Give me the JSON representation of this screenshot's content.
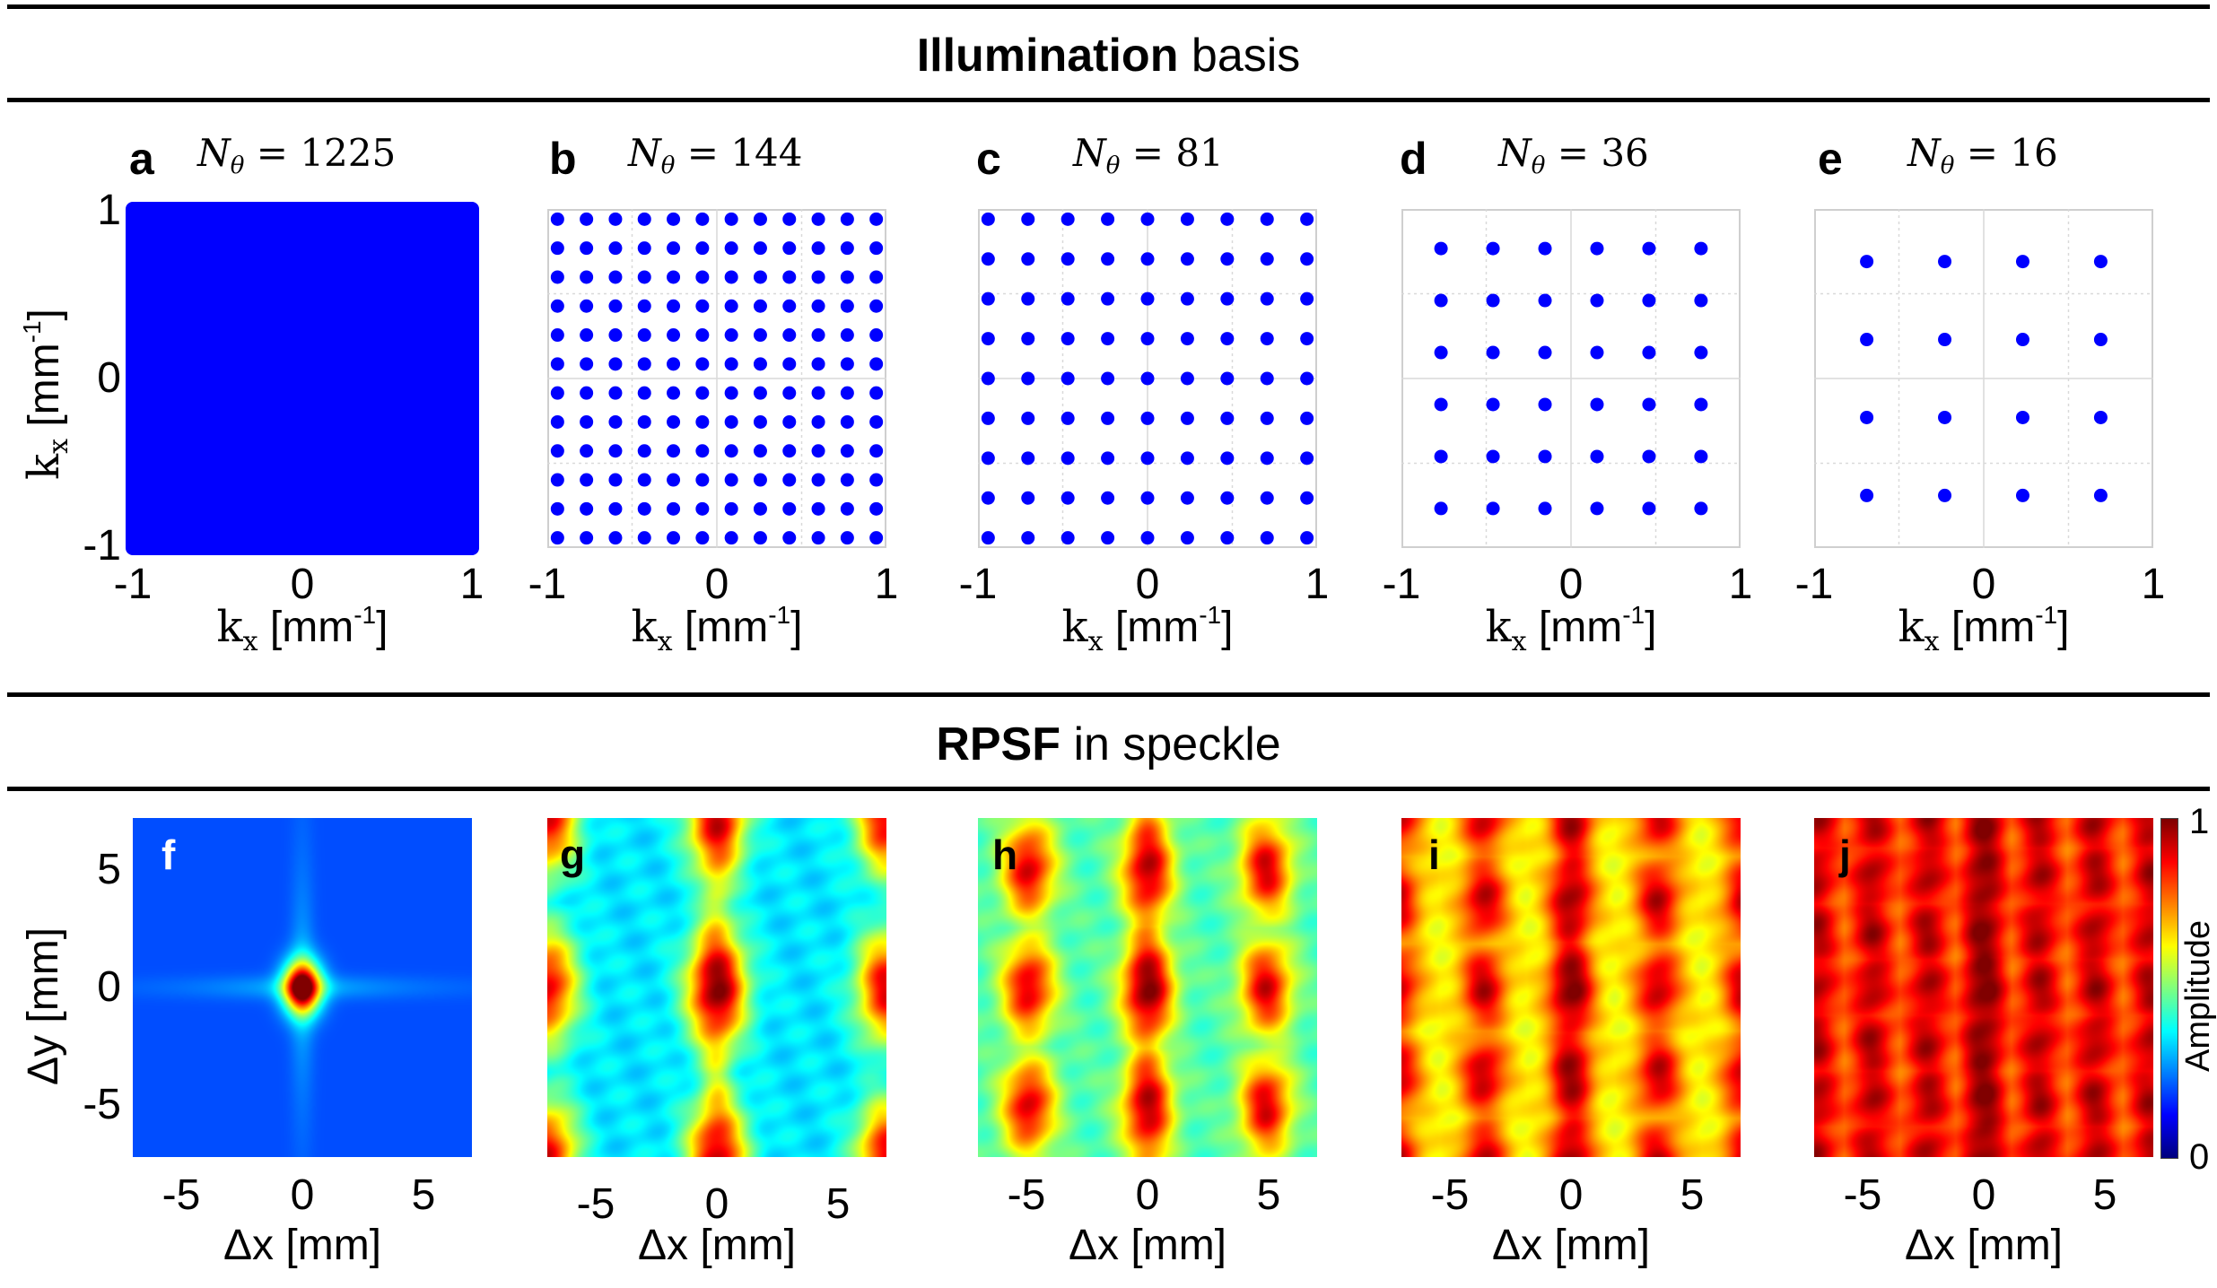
{
  "top_section": {
    "title_bold": "Illumination",
    "title_rest": " basis"
  },
  "bottom_section": {
    "title_bold": "RPSF",
    "title_rest": " in speckle"
  },
  "colors": {
    "dot": "#0000ff",
    "grid": "#d9d9d9"
  },
  "chart_data": [
    {
      "panel": "a",
      "type": "scatter",
      "n_label": "1225",
      "grid_n": 35,
      "x_range": [
        -1,
        1
      ],
      "y_range": [
        -1,
        1
      ],
      "xlabel": "k",
      "xlabel_sub": "x",
      "xlabel_unit": " [mm",
      "xlabel_sup": "-1",
      "xlabel_close": "]",
      "ylabel": "k",
      "ylabel_sub": "x",
      "ylabel_unit": " [mm",
      "ylabel_sup": "-1",
      "ylabel_close": "]",
      "xticks": [
        "-1",
        "0",
        "1"
      ],
      "yticks": [
        "1",
        "0",
        "-1"
      ]
    },
    {
      "panel": "b",
      "type": "scatter",
      "n_label": "144",
      "grid_n": 12,
      "x_range": [
        -1,
        1
      ],
      "y_range": [
        -1,
        1
      ],
      "xlabel": "k",
      "xlabel_sub": "x",
      "xlabel_unit": " [mm",
      "xlabel_sup": "-1",
      "xlabel_close": "]",
      "xticks": [
        "-1",
        "0",
        "1"
      ]
    },
    {
      "panel": "c",
      "type": "scatter",
      "n_label": "81",
      "grid_n": 9,
      "x_range": [
        -1,
        1
      ],
      "y_range": [
        -1,
        1
      ],
      "xlabel": "k",
      "xlabel_sub": "x",
      "xlabel_unit": " [mm",
      "xlabel_sup": "-1",
      "xlabel_close": "]",
      "xticks": [
        "-1",
        "0",
        "1"
      ]
    },
    {
      "panel": "d",
      "type": "scatter",
      "n_label": "36",
      "grid_n": 6,
      "x_range": [
        -1,
        1
      ],
      "y_range": [
        -1,
        1
      ],
      "xlabel": "k",
      "xlabel_sub": "x",
      "xlabel_unit": " [mm",
      "xlabel_sup": "-1",
      "xlabel_close": "]",
      "xticks": [
        "-1",
        "0",
        "1"
      ]
    },
    {
      "panel": "e",
      "type": "scatter",
      "n_label": "16",
      "grid_n": 4,
      "x_range": [
        -1,
        1
      ],
      "y_range": [
        -1,
        1
      ],
      "xlabel": "k",
      "xlabel_sub": "x",
      "xlabel_unit": " [mm",
      "xlabel_sup": "-1",
      "xlabel_close": "]",
      "xticks": [
        "-1",
        "0",
        "1"
      ]
    },
    {
      "panel": "f",
      "type": "heatmap",
      "period_mm": null,
      "background": 0.2,
      "x_range": [
        -7,
        7
      ],
      "y_range": [
        -7,
        7
      ],
      "xlabel": "Δx [mm]",
      "ylabel": "Δy [mm]",
      "xticks": [
        "-5",
        "0",
        "5"
      ],
      "yticks": [
        "5",
        "0",
        "-5"
      ]
    },
    {
      "panel": "g",
      "type": "heatmap",
      "period_mm": 7.0,
      "background": 0.35,
      "x_range": [
        -7,
        7
      ],
      "y_range": [
        -7,
        7
      ],
      "xlabel": "Δx [mm]",
      "xticks": [
        "-5",
        "0",
        "5"
      ]
    },
    {
      "panel": "h",
      "type": "heatmap",
      "period_mm": 4.9,
      "background": 0.45,
      "x_range": [
        -7,
        7
      ],
      "y_range": [
        -7,
        7
      ],
      "xlabel": "Δx [mm]",
      "xticks": [
        "-5",
        "0",
        "5"
      ]
    },
    {
      "panel": "i",
      "type": "heatmap",
      "period_mm": 3.6,
      "background": 0.62,
      "x_range": [
        -7,
        7
      ],
      "y_range": [
        -7,
        7
      ],
      "xlabel": "Δx [mm]",
      "xticks": [
        "-5",
        "0",
        "5"
      ]
    },
    {
      "panel": "j",
      "type": "heatmap",
      "period_mm": 2.3,
      "background": 0.75,
      "x_range": [
        -7,
        7
      ],
      "y_range": [
        -7,
        7
      ],
      "xlabel": "Δx [mm]",
      "xticks": [
        "-5",
        "0",
        "5"
      ]
    }
  ],
  "colorbar": {
    "label": "Amplitude",
    "min": "0",
    "max": "1",
    "range": [
      0,
      1
    ],
    "colormap": "jet"
  },
  "n_symbol": "N",
  "n_sub": "θ",
  "n_eq": " = "
}
